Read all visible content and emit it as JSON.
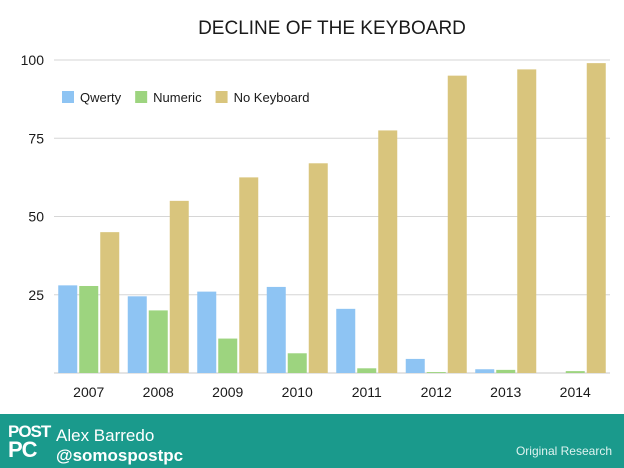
{
  "chart_data": {
    "type": "bar",
    "title": "DECLINE OF THE KEYBOARD",
    "xlabel": "",
    "ylabel": "",
    "ylim": [
      0,
      100
    ],
    "yticks": [
      25,
      50,
      75,
      100
    ],
    "grid": true,
    "legend_position": "top-left",
    "categories": [
      "2007",
      "2008",
      "2009",
      "2010",
      "2011",
      "2012",
      "2013",
      "2014"
    ],
    "series": [
      {
        "name": "Qwerty",
        "color": "#8ec4f3",
        "values": [
          28,
          24.5,
          26,
          27.5,
          20.5,
          4.5,
          1.2,
          0
        ]
      },
      {
        "name": "Numeric",
        "color": "#9dd47f",
        "values": [
          27.8,
          20,
          11,
          6.3,
          1.5,
          0.3,
          1,
          0.6
        ]
      },
      {
        "name": "No Keyboard",
        "color": "#d9c57d",
        "values": [
          45,
          55,
          62.5,
          67,
          77.5,
          95,
          97,
          99
        ]
      }
    ]
  },
  "footer": {
    "logo_line1": "POST",
    "logo_line2": "PC",
    "author_name": "Alex Barredo",
    "author_handle": "@somospostpc",
    "source": "Original Research"
  }
}
